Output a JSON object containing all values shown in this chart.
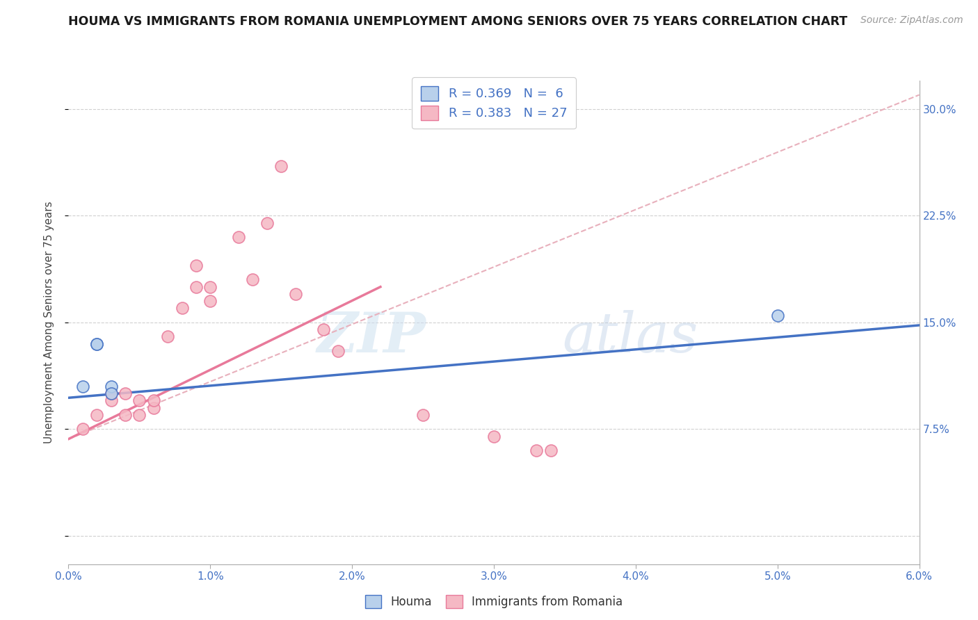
{
  "title": "HOUMA VS IMMIGRANTS FROM ROMANIA UNEMPLOYMENT AMONG SENIORS OVER 75 YEARS CORRELATION CHART",
  "source": "Source: ZipAtlas.com",
  "ylabel": "Unemployment Among Seniors over 75 years",
  "xlim": [
    0.0,
    0.06
  ],
  "ylim": [
    -0.02,
    0.32
  ],
  "yticks": [
    0.0,
    0.075,
    0.15,
    0.225,
    0.3
  ],
  "ytick_labels_right": [
    "",
    "7.5%",
    "15.0%",
    "22.5%",
    "30.0%"
  ],
  "xticks": [
    0.0,
    0.01,
    0.02,
    0.03,
    0.04,
    0.05,
    0.06
  ],
  "xtick_labels": [
    "0.0%",
    "1.0%",
    "2.0%",
    "3.0%",
    "4.0%",
    "5.0%",
    "6.0%"
  ],
  "houma_x": [
    0.001,
    0.002,
    0.002,
    0.003,
    0.003,
    0.05
  ],
  "houma_y": [
    0.105,
    0.135,
    0.135,
    0.105,
    0.1,
    0.155
  ],
  "romania_x": [
    0.001,
    0.002,
    0.003,
    0.003,
    0.004,
    0.004,
    0.005,
    0.005,
    0.006,
    0.006,
    0.007,
    0.008,
    0.009,
    0.009,
    0.01,
    0.01,
    0.012,
    0.013,
    0.014,
    0.015,
    0.016,
    0.018,
    0.019,
    0.025,
    0.03,
    0.033,
    0.034
  ],
  "romania_y": [
    0.075,
    0.085,
    0.095,
    0.1,
    0.085,
    0.1,
    0.085,
    0.095,
    0.09,
    0.095,
    0.14,
    0.16,
    0.175,
    0.19,
    0.165,
    0.175,
    0.21,
    0.18,
    0.22,
    0.26,
    0.17,
    0.145,
    0.13,
    0.085,
    0.07,
    0.06,
    0.06
  ],
  "houma_color": "#b8d0eb",
  "romania_color": "#f5b8c4",
  "houma_edge_color": "#4472c4",
  "romania_edge_color": "#e8799a",
  "houma_line_color": "#4472c4",
  "romania_line_color": "#e8799a",
  "dashed_line_color": "#e8b0bc",
  "legend_R_houma": "R = 0.369",
  "legend_N_houma": "N =  6",
  "legend_R_romania": "R = 0.383",
  "legend_N_romania": "N = 27",
  "legend_label_houma": "Houma",
  "legend_label_romania": "Immigrants from Romania",
  "watermark_zip": "ZIP",
  "watermark_atlas": "atlas",
  "background_color": "#ffffff",
  "grid_color": "#d0d0d0",
  "title_color": "#1a1a1a",
  "tick_color": "#4472c4",
  "houma_trend_x": [
    0.0,
    0.06
  ],
  "houma_trend_y": [
    0.097,
    0.148
  ],
  "romania_trend_x": [
    0.0,
    0.022
  ],
  "romania_trend_y": [
    0.068,
    0.175
  ],
  "dashed_trend_x": [
    0.0,
    0.06
  ],
  "dashed_trend_y": [
    0.068,
    0.31
  ]
}
